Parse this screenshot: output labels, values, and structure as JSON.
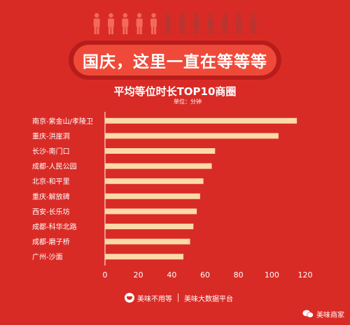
{
  "header": {
    "banner_text": "国庆，这里一直在等等等",
    "people_count": 12,
    "people_highlighted": 5,
    "colors": {
      "person_highlight": "#f36a5a",
      "person_dim": "#b83530"
    }
  },
  "chart_data": {
    "type": "bar",
    "orientation": "horizontal",
    "title": "平均等位时长TOP10商圈",
    "unit_note": "单位：分钟",
    "categories": [
      "南京-紫金山/孝陵卫",
      "重庆-洪崖洞",
      "长沙-南门口",
      "成都-人民公园",
      "北京-和平里",
      "重庆-解放碑",
      "西安-长乐坊",
      "成都-科华北路",
      "成都-磨子桥",
      "广州-沙面"
    ],
    "values": [
      115,
      104,
      66,
      64,
      59,
      57,
      55,
      53,
      51,
      47
    ],
    "xlim": [
      0,
      120
    ],
    "xticks": [
      0,
      20,
      40,
      60,
      80,
      100,
      120
    ],
    "bar_color": "#fbd9a8",
    "grid": false
  },
  "footer": {
    "brand": "美味不用等",
    "platform": "美味大数据平台"
  },
  "watermark": {
    "text": "美味商家"
  }
}
